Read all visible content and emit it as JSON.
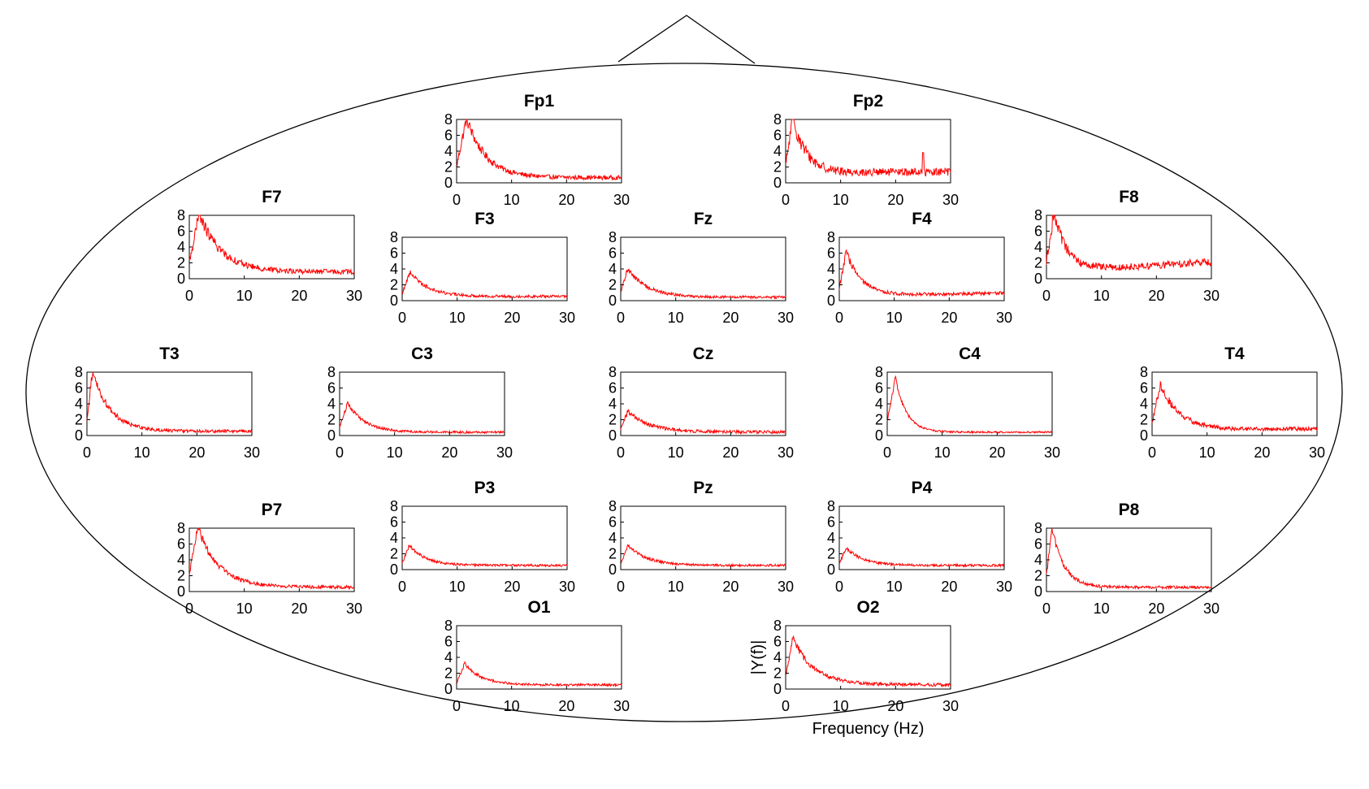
{
  "chart_data": {
    "type": "line",
    "layout": "EEG scalp montage (10-20 system), amplitude spectrum per electrode",
    "line_color": "#ff0000",
    "xlim": [
      0,
      30
    ],
    "ylim": [
      0,
      8
    ],
    "xticks": [
      0,
      10,
      20,
      30
    ],
    "yticks": [
      0,
      2,
      4,
      6,
      8
    ],
    "xlabel": "Frequency (Hz)",
    "ylabel": "|Y(f)|",
    "grid": false,
    "legend": "none",
    "panels": [
      {
        "title": "Fp1",
        "profile": {
          "peak": 8.0,
          "peak_freq": 1.8,
          "decay": 3.5,
          "floor": 0.6,
          "noise": 0.45,
          "rise": 0.0
        }
      },
      {
        "title": "Fp2",
        "profile": {
          "peak": 8.0,
          "peak_freq": 1.3,
          "decay": 2.5,
          "floor": 1.1,
          "noise": 0.7,
          "rise": 0.2,
          "spike_freq": 25.0,
          "spike": 3.8
        }
      },
      {
        "title": "F7",
        "profile": {
          "peak": 8.0,
          "peak_freq": 1.8,
          "decay": 4.0,
          "floor": 0.8,
          "noise": 0.5,
          "rise": 0.0
        }
      },
      {
        "title": "F3",
        "profile": {
          "peak": 3.6,
          "peak_freq": 1.5,
          "decay": 3.2,
          "floor": 0.5,
          "noise": 0.3,
          "rise": 0.0
        }
      },
      {
        "title": "Fz",
        "profile": {
          "peak": 4.0,
          "peak_freq": 1.3,
          "decay": 3.5,
          "floor": 0.4,
          "noise": 0.3,
          "rise": 0.0
        }
      },
      {
        "title": "F4",
        "profile": {
          "peak": 6.1,
          "peak_freq": 1.3,
          "decay": 2.6,
          "floor": 0.6,
          "noise": 0.35,
          "rise": 0.3
        }
      },
      {
        "title": "F8",
        "profile": {
          "peak": 8.0,
          "peak_freq": 1.3,
          "decay": 2.4,
          "floor": 0.8,
          "noise": 0.6,
          "rise": 1.2
        }
      },
      {
        "title": "T3",
        "profile": {
          "peak": 8.0,
          "peak_freq": 1.0,
          "decay": 3.2,
          "floor": 0.5,
          "noise": 0.35,
          "rise": 0.0
        }
      },
      {
        "title": "C3",
        "profile": {
          "peak": 4.1,
          "peak_freq": 1.5,
          "decay": 3.0,
          "floor": 0.4,
          "noise": 0.25,
          "rise": 0.0
        }
      },
      {
        "title": "Cz",
        "profile": {
          "peak": 3.0,
          "peak_freq": 1.3,
          "decay": 3.8,
          "floor": 0.4,
          "noise": 0.35,
          "rise": 0.0
        }
      },
      {
        "title": "C4",
        "profile": {
          "peak": 7.2,
          "peak_freq": 1.5,
          "decay": 2.0,
          "floor": 0.4,
          "noise": 0.2,
          "rise": 0.0
        }
      },
      {
        "title": "T4",
        "profile": {
          "peak": 6.3,
          "peak_freq": 1.5,
          "decay": 3.5,
          "floor": 0.6,
          "noise": 0.4,
          "rise": 0.2
        }
      },
      {
        "title": "P7",
        "profile": {
          "peak": 8.0,
          "peak_freq": 1.5,
          "decay": 3.8,
          "floor": 0.5,
          "noise": 0.35,
          "rise": 0.0
        }
      },
      {
        "title": "P3",
        "profile": {
          "peak": 3.0,
          "peak_freq": 1.3,
          "decay": 3.0,
          "floor": 0.5,
          "noise": 0.25,
          "rise": 0.0
        }
      },
      {
        "title": "Pz",
        "profile": {
          "peak": 3.0,
          "peak_freq": 1.3,
          "decay": 3.5,
          "floor": 0.5,
          "noise": 0.25,
          "rise": 0.0
        }
      },
      {
        "title": "P4",
        "profile": {
          "peak": 2.7,
          "peak_freq": 1.3,
          "decay": 3.0,
          "floor": 0.5,
          "noise": 0.25,
          "rise": 0.0
        }
      },
      {
        "title": "P8",
        "profile": {
          "peak": 8.0,
          "peak_freq": 1.0,
          "decay": 2.2,
          "floor": 0.5,
          "noise": 0.3,
          "rise": 0.0
        }
      },
      {
        "title": "O1",
        "profile": {
          "peak": 3.2,
          "peak_freq": 1.5,
          "decay": 3.0,
          "floor": 0.5,
          "noise": 0.25,
          "rise": 0.0
        }
      },
      {
        "title": "O2",
        "profile": {
          "peak": 6.3,
          "peak_freq": 1.3,
          "decay": 3.8,
          "floor": 0.5,
          "noise": 0.35,
          "rise": 0.0
        }
      }
    ]
  }
}
